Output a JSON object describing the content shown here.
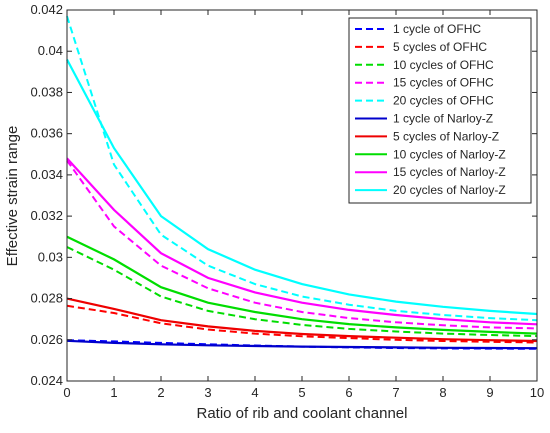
{
  "chart_data": {
    "type": "line",
    "xlabel": "Ratio of rib and coolant channel",
    "ylabel": "Effective strain range",
    "xlim": [
      0,
      10
    ],
    "ylim": [
      0.024,
      0.042
    ],
    "x": [
      0,
      1,
      2,
      3,
      4,
      5,
      6,
      7,
      8,
      9,
      10
    ],
    "xticks": [
      "0",
      "1",
      "2",
      "3",
      "4",
      "5",
      "6",
      "7",
      "8",
      "9",
      "10"
    ],
    "yticks": [
      "0.024",
      "0.026",
      "0.028",
      "0.03",
      "0.032",
      "0.034",
      "0.036",
      "0.038",
      "0.04",
      "0.042"
    ],
    "grid": false,
    "legend_position": "top-right",
    "series": [
      {
        "name": "1 cycle of OFHC",
        "color": "#0000ff",
        "style": "dashed",
        "values": [
          0.02598,
          0.02592,
          0.02585,
          0.02578,
          0.02572,
          0.02567,
          0.02563,
          0.0256,
          0.02558,
          0.02557,
          0.02556
        ]
      },
      {
        "name": "5 cycles of OFHC",
        "color": "#ff0000",
        "style": "dashed",
        "values": [
          0.02765,
          0.0273,
          0.0268,
          0.0265,
          0.0263,
          0.02617,
          0.02608,
          0.026,
          0.02594,
          0.0259,
          0.02587
        ]
      },
      {
        "name": "10 cycles of OFHC",
        "color": "#00dd00",
        "style": "dashed",
        "values": [
          0.0305,
          0.0294,
          0.0281,
          0.0274,
          0.027,
          0.02672,
          0.02653,
          0.0264,
          0.0263,
          0.02623,
          0.02618
        ]
      },
      {
        "name": "15 cycles of OFHC",
        "color": "#ff00ff",
        "style": "dashed",
        "values": [
          0.0347,
          0.0315,
          0.0296,
          0.0285,
          0.0278,
          0.02735,
          0.02705,
          0.02685,
          0.0267,
          0.0266,
          0.02655
        ]
      },
      {
        "name": "20 cycles of OFHC",
        "color": "#00ffff",
        "style": "dashed",
        "values": [
          0.0417,
          0.0345,
          0.0311,
          0.0296,
          0.0287,
          0.0281,
          0.0277,
          0.0274,
          0.0272,
          0.02705,
          0.02695
        ]
      },
      {
        "name": "1 cycle of Narloy-Z",
        "color": "#0000cc",
        "style": "solid",
        "values": [
          0.02595,
          0.02585,
          0.02578,
          0.02573,
          0.0257,
          0.02567,
          0.02565,
          0.02563,
          0.02561,
          0.0256,
          0.02559
        ]
      },
      {
        "name": "5 cycles of Narloy-Z",
        "color": "#ee0000",
        "style": "solid",
        "values": [
          0.028,
          0.0275,
          0.02695,
          0.02665,
          0.02643,
          0.02628,
          0.02618,
          0.0261,
          0.02603,
          0.02598,
          0.02594
        ]
      },
      {
        "name": "10 cycles of Narloy-Z",
        "color": "#00dd00",
        "style": "solid",
        "values": [
          0.031,
          0.0299,
          0.02855,
          0.0278,
          0.02735,
          0.027,
          0.02676,
          0.0266,
          0.02648,
          0.02638,
          0.0263
        ]
      },
      {
        "name": "15 cycles of Narloy-Z",
        "color": "#ff00ff",
        "style": "solid",
        "values": [
          0.0348,
          0.0323,
          0.0302,
          0.029,
          0.0283,
          0.0278,
          0.02745,
          0.0272,
          0.027,
          0.02685,
          0.02675
        ]
      },
      {
        "name": "20 cycles of Narloy-Z",
        "color": "#00ffff",
        "style": "solid",
        "values": [
          0.0396,
          0.0353,
          0.032,
          0.0304,
          0.0294,
          0.0287,
          0.0282,
          0.02785,
          0.0276,
          0.0274,
          0.02725
        ]
      }
    ]
  }
}
